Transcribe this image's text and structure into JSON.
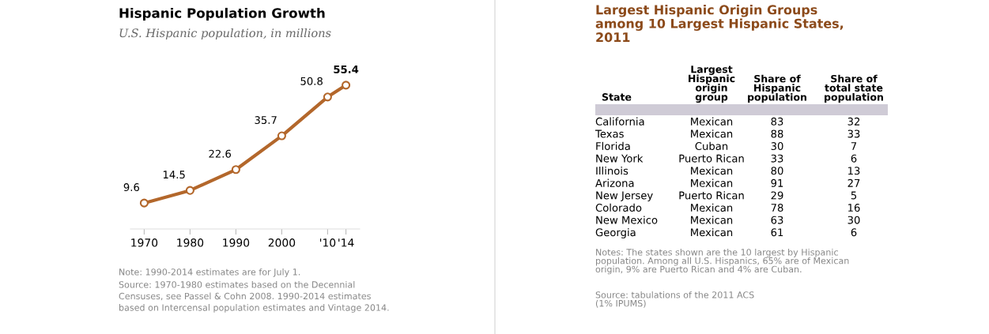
{
  "chart_data": [
    {
      "type": "line",
      "title": "Hispanic Population Growth",
      "subtitle": "U.S. Hispanic population, in millions",
      "x": [
        1970,
        1980,
        1990,
        2000,
        2010,
        2014
      ],
      "series": [
        {
          "color": "#b3672b",
          "values": [
            9.6,
            14.5,
            22.6,
            35.7,
            50.8,
            55.4
          ]
        }
      ],
      "xlim": [
        1967,
        2017
      ],
      "xticks": [
        1970,
        1980,
        1990,
        2000,
        {
          "value": 2010,
          "label": "'10"
        },
        {
          "value": 2014,
          "label": "'14"
        }
      ],
      "tick_labels": "x",
      "data_labels": true,
      "marker": "circle",
      "line_style": "solid",
      "grid": false,
      "legend": false,
      "annotations": [
        "Note: 1990-2014 estimates are for July 1.",
        "Source: 1970-1980 estimates based on the Decennial\nCensuses, see Passel & Cohn 2008. 1990-2014 estimates\nbased on Intercensal population estimates and Vintage 2014."
      ]
    },
    {
      "type": "other",
      "title": "Largest Hispanic Origin Groups\namong 10 Largest Hispanic States,\n2011",
      "categories": [
        "State",
        "Largest\nHispanic\norigin\ngroup",
        "Share of\nHispanic\npopulation",
        "Share of\ntotal state\npopulation"
      ],
      "y_categories": [
        "California",
        "Texas",
        "Florida",
        "New York",
        "Illinois",
        "Arizona",
        "New Jersey",
        "Colorado",
        "New Mexico",
        "Georgia"
      ],
      "cell_labels": [
        [
          "Mexican",
          "83",
          "32"
        ],
        [
          "Mexican",
          "88",
          "33"
        ],
        [
          "Cuban",
          "30",
          "7"
        ],
        [
          "Puerto Rican",
          "33",
          "6"
        ],
        [
          "Mexican",
          "80",
          "13"
        ],
        [
          "Mexican",
          "91",
          "27"
        ],
        [
          "Puerto Rican",
          "29",
          "5"
        ],
        [
          "Mexican",
          "78",
          "16"
        ],
        [
          "Mexican",
          "63",
          "30"
        ],
        [
          "Mexican",
          "61",
          "6"
        ]
      ],
      "annotations": [
        "Notes: The states shown are the 10 largest by Hispanic\npopulation. Among all U.S. Hispanics, 65% are of Mexican\norigin, 9% are Puerto Rican and 4% are Cuban.",
        "Source: tabulations of the 2011 ACS\n(1% IPUMS)"
      ]
    }
  ]
}
